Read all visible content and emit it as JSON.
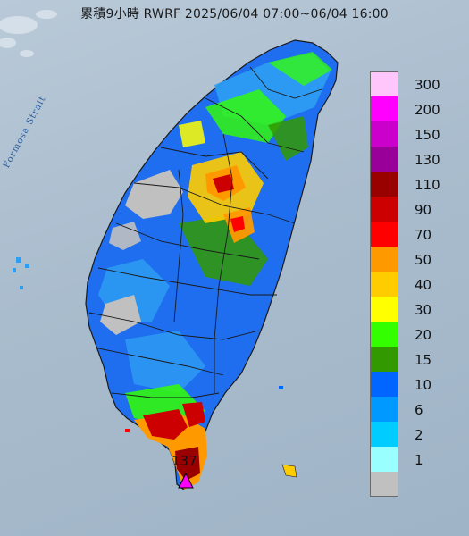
{
  "title": "累積9小時 RWRF 2025/06/04 07:00~06/04 16:00",
  "strait_label": "Formosa Strait",
  "max_value": "137",
  "legend": [
    {
      "label": "300",
      "color": "#ffc6fb"
    },
    {
      "label": "200",
      "color": "#ff00ff"
    },
    {
      "label": "150",
      "color": "#cc00cc"
    },
    {
      "label": "130",
      "color": "#990099"
    },
    {
      "label": "110",
      "color": "#990000"
    },
    {
      "label": "90",
      "color": "#cc0000"
    },
    {
      "label": "70",
      "color": "#ff0000"
    },
    {
      "label": "50",
      "color": "#ff9900"
    },
    {
      "label": "40",
      "color": "#ffcc00"
    },
    {
      "label": "30",
      "color": "#ffff00"
    },
    {
      "label": "20",
      "color": "#33ff00"
    },
    {
      "label": "15",
      "color": "#339900"
    },
    {
      "label": "10",
      "color": "#0066ff"
    },
    {
      "label": "6",
      "color": "#0099ff"
    },
    {
      "label": "2",
      "color": "#00ccff"
    },
    {
      "label": "1",
      "color": "#99ffff"
    },
    {
      "label": "",
      "color": "#c0c0c0"
    }
  ],
  "colors": {
    "sea": "#a9bccd",
    "land_base": "#1f6ef0",
    "land_light": "#2e9ef2",
    "county_line": "#1a1a1a"
  },
  "marker_icon": "triangle-marker-icon"
}
